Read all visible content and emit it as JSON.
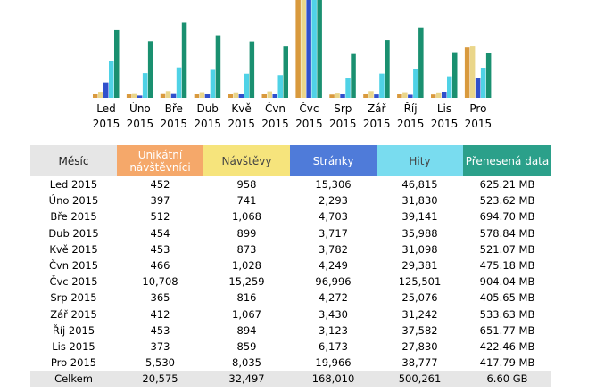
{
  "chart_data": {
    "type": "bar",
    "categories": [
      "Led|2015",
      "Úno|2015",
      "Bře|2015",
      "Dub|2015",
      "Kvě|2015",
      "Čvn|2015",
      "Čvc|2015",
      "Srp|2015",
      "Zář|2015",
      "Říj|2015",
      "Lis|2015",
      "Pro|2015"
    ],
    "series": [
      {
        "name": "Unikátní návštěvníci",
        "color": "#d99a3e",
        "values": [
          452,
          397,
          512,
          454,
          453,
          466,
          10708,
          365,
          412,
          453,
          373,
          5530
        ]
      },
      {
        "name": "Návštěvy",
        "color": "#ead68a",
        "values": [
          958,
          741,
          1068,
          899,
          873,
          1028,
          15259,
          816,
          1067,
          894,
          859,
          8035
        ]
      },
      {
        "name": "Stránky",
        "color": "#3050cc",
        "values": [
          15306,
          2293,
          4703,
          3717,
          3782,
          4249,
          96996,
          4272,
          3430,
          3123,
          6173,
          19966
        ]
      },
      {
        "name": "Hity",
        "color": "#4fd2e6",
        "values": [
          46815,
          31830,
          39141,
          35988,
          31098,
          29381,
          125501,
          25076,
          31242,
          37582,
          27830,
          38777
        ]
      },
      {
        "name": "Přenesená data",
        "color": "#1a9070",
        "values": [
          625.21,
          523.62,
          694.7,
          578.84,
          521.07,
          475.18,
          904.04,
          405.65,
          533.63,
          651.77,
          422.46,
          417.79
        ]
      }
    ]
  },
  "table": {
    "headers": {
      "month": "Měsíc",
      "visitors": "Unikátní návštěvníci",
      "visits": "Návštěvy",
      "pages": "Stránky",
      "hits": "Hity",
      "bandwidth": "Přenesená data"
    },
    "rows": [
      {
        "month": "Led 2015",
        "visitors": "452",
        "visits": "958",
        "pages": "15,306",
        "hits": "46,815",
        "bandwidth": "625.21 MB"
      },
      {
        "month": "Úno 2015",
        "visitors": "397",
        "visits": "741",
        "pages": "2,293",
        "hits": "31,830",
        "bandwidth": "523.62 MB"
      },
      {
        "month": "Bře 2015",
        "visitors": "512",
        "visits": "1,068",
        "pages": "4,703",
        "hits": "39,141",
        "bandwidth": "694.70 MB"
      },
      {
        "month": "Dub 2015",
        "visitors": "454",
        "visits": "899",
        "pages": "3,717",
        "hits": "35,988",
        "bandwidth": "578.84 MB"
      },
      {
        "month": "Kvě 2015",
        "visitors": "453",
        "visits": "873",
        "pages": "3,782",
        "hits": "31,098",
        "bandwidth": "521.07 MB"
      },
      {
        "month": "Čvn 2015",
        "visitors": "466",
        "visits": "1,028",
        "pages": "4,249",
        "hits": "29,381",
        "bandwidth": "475.18 MB"
      },
      {
        "month": "Čvc 2015",
        "visitors": "10,708",
        "visits": "15,259",
        "pages": "96,996",
        "hits": "125,501",
        "bandwidth": "904.04 MB"
      },
      {
        "month": "Srp 2015",
        "visitors": "365",
        "visits": "816",
        "pages": "4,272",
        "hits": "25,076",
        "bandwidth": "405.65 MB"
      },
      {
        "month": "Zář 2015",
        "visitors": "412",
        "visits": "1,067",
        "pages": "3,430",
        "hits": "31,242",
        "bandwidth": "533.63 MB"
      },
      {
        "month": "Říj 2015",
        "visitors": "453",
        "visits": "894",
        "pages": "3,123",
        "hits": "37,582",
        "bandwidth": "651.77 MB"
      },
      {
        "month": "Lis 2015",
        "visitors": "373",
        "visits": "859",
        "pages": "6,173",
        "hits": "27,830",
        "bandwidth": "422.46 MB"
      },
      {
        "month": "Pro 2015",
        "visitors": "5,530",
        "visits": "8,035",
        "pages": "19,966",
        "hits": "38,777",
        "bandwidth": "417.79 MB"
      }
    ],
    "total": {
      "month": "Celkem",
      "visitors": "20,575",
      "visits": "32,497",
      "pages": "168,010",
      "hits": "500,261",
      "bandwidth": "6.60 GB"
    }
  }
}
